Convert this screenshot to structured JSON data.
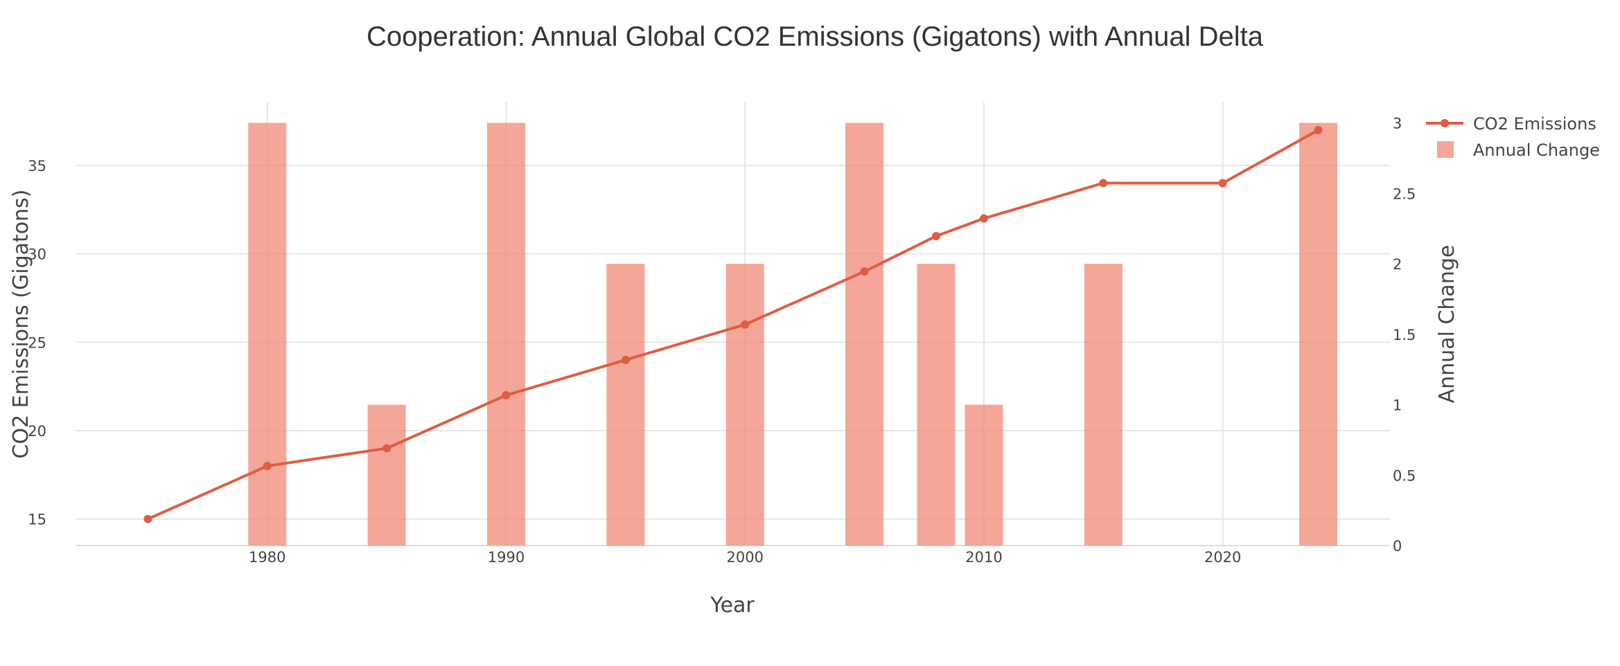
{
  "chart_data": {
    "type": "bar",
    "title": "Cooperation: Annual Global CO2 Emissions (Gigatons) with Annual Delta",
    "xlabel": "Year",
    "ylabel": "CO2 Emissions (Gigatons)",
    "y2label": "Annual Change",
    "xlim": [
      1972,
      2027
    ],
    "ylim": [
      13.5,
      38.6
    ],
    "y2lim": [
      0,
      3.15
    ],
    "xticks": [
      1980,
      1990,
      2000,
      2010,
      2020
    ],
    "yticks": [
      15,
      20,
      25,
      30,
      35
    ],
    "y2ticks": [
      0,
      0.5,
      1,
      1.5,
      2,
      2.5,
      3
    ],
    "y2ticklabels": [
      "0",
      "0.5",
      "1",
      "1.5",
      "2",
      "2.5",
      "3"
    ],
    "grid": true,
    "legend_position": "top-right",
    "series": [
      {
        "name": "CO2 Emissions",
        "type": "line",
        "axis": "y",
        "color": "#e05c42",
        "x": [
          1975,
          1980,
          1985,
          1990,
          1995,
          2000,
          2005,
          2008,
          2010,
          2015,
          2020,
          2024
        ],
        "values": [
          15,
          18,
          19,
          22,
          24,
          26,
          29,
          31,
          32,
          34,
          34,
          37
        ]
      },
      {
        "name": "Annual Change",
        "type": "bar",
        "axis": "y2",
        "color": "#f08a76",
        "x": [
          1980,
          1985,
          1990,
          1995,
          2000,
          2005,
          2008,
          2010,
          2015,
          2024
        ],
        "values": [
          3,
          1,
          3,
          2,
          2,
          3,
          2,
          1,
          2,
          3
        ]
      }
    ]
  }
}
